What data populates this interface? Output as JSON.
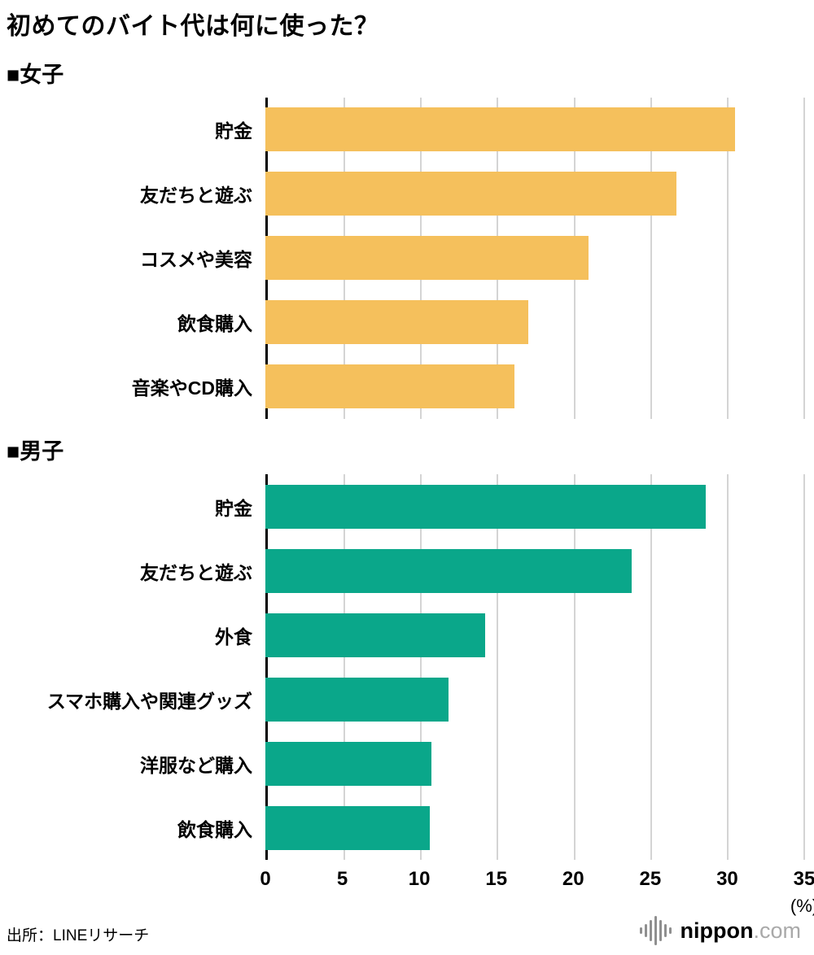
{
  "title": "初めてのバイト代は何に使った？",
  "source": "出所：LINEリサーチ",
  "logo": {
    "name": "nippon",
    "tld": ".com"
  },
  "chart_data": [
    {
      "type": "bar",
      "orientation": "horizontal",
      "title": "■女子",
      "categories": [
        "貯金",
        "友だちと遊ぶ",
        "コスメや美容",
        "飲食購入",
        "音楽やCD購入"
      ],
      "values": [
        30.5,
        26.7,
        21.0,
        17.1,
        16.2
      ],
      "bar_color": "#f5c05c",
      "xlim": [
        0,
        35
      ],
      "xticks": [
        0,
        5,
        10,
        15,
        20,
        25,
        30,
        35
      ],
      "xlabel": "(%)",
      "grid": true,
      "gridline_color": "#d4d4d4",
      "axis_color": "#000000"
    },
    {
      "type": "bar",
      "orientation": "horizontal",
      "title": "■男子",
      "categories": [
        "貯金",
        "友だちと遊ぶ",
        "外食",
        "スマホ購入や関連グッズ",
        "洋服など購入",
        "飲食購入"
      ],
      "values": [
        28.6,
        23.8,
        14.3,
        11.9,
        10.8,
        10.7
      ],
      "bar_color": "#0aa78a",
      "xlim": [
        0,
        35
      ],
      "xticks": [
        0,
        5,
        10,
        15,
        20,
        25,
        30,
        35
      ],
      "xlabel": "(%)",
      "grid": true,
      "gridline_color": "#d4d4d4",
      "axis_color": "#000000"
    }
  ]
}
